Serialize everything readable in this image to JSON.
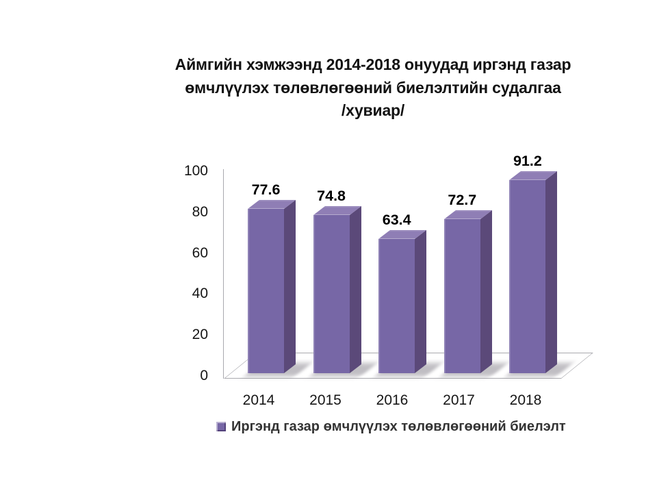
{
  "title": {
    "line1": "Аймгийн хэмжээнд 2014-2018 онуудад иргэнд газар",
    "line2": "өмчлүүлэх төлөвлөгөөний биелэлтийн судалгаа",
    "line3": "/хувиар/"
  },
  "legend": {
    "label": "Иргэнд газар өмчлүүлэх төлөвлөгөөний биелэлт"
  },
  "chart_data": {
    "type": "bar",
    "style": "3d-column",
    "title": "Аймгийн хэмжээнд 2014-2018 онуудад иргэнд газар өмчлүүлэх төлөвлөгөөний биелэлтийн судалгаа /хувиар/",
    "categories": [
      "2014",
      "2015",
      "2016",
      "2017",
      "2018"
    ],
    "series": [
      {
        "name": "Иргэнд газар өмчлүүлэх төлөвлөгөөний биелэлт",
        "values": [
          77.6,
          74.8,
          63.4,
          72.7,
          91.2
        ]
      }
    ],
    "show_data_labels": true,
    "xlabel": "",
    "ylabel": "",
    "ylim": [
      0,
      100
    ],
    "y_ticks": [
      0,
      20,
      40,
      60,
      80,
      100
    ],
    "grid": false,
    "legend_position": "bottom",
    "colors": {
      "bar_front": "#7767A6",
      "bar_top": "#8F7EB5",
      "bar_side": "#5B4979",
      "axis": "#A9A9AE",
      "text": "#161616",
      "data_label": "#000000"
    }
  }
}
